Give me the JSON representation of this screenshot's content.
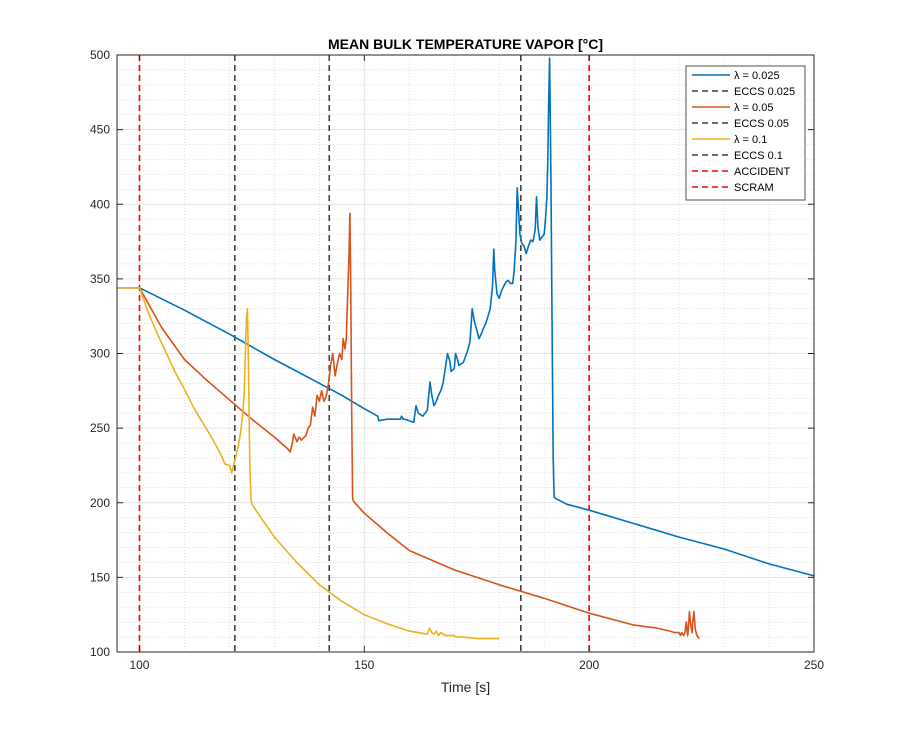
{
  "chart_data": {
    "type": "line",
    "title": "MEAN BULK TEMPERATURE VAPOR [°C]",
    "xlabel": "Time [s]",
    "ylabel": "",
    "xlim": [
      95,
      250
    ],
    "ylim": [
      100,
      500
    ],
    "xticks": [
      100,
      150,
      200,
      250
    ],
    "yticks": [
      100,
      150,
      200,
      250,
      300,
      350,
      400,
      450,
      500
    ],
    "grid": true,
    "minor_grid": true,
    "legend_position": "top-right",
    "series": [
      {
        "name": "λ = 0.025",
        "color": "#0072BD",
        "points": [
          [
            95,
            344
          ],
          [
            100,
            344
          ],
          [
            110,
            329
          ],
          [
            120,
            313
          ],
          [
            130,
            296
          ],
          [
            140,
            280
          ],
          [
            145,
            272
          ],
          [
            150,
            263
          ],
          [
            153,
            258
          ],
          [
            153.2,
            255
          ],
          [
            155,
            256
          ],
          [
            158,
            256
          ],
          [
            158.3,
            258
          ],
          [
            158.6,
            256
          ],
          [
            159,
            256
          ],
          [
            160,
            255
          ],
          [
            161,
            254
          ],
          [
            161.5,
            265
          ],
          [
            162,
            260
          ],
          [
            163,
            258
          ],
          [
            164,
            262
          ],
          [
            164.6,
            281
          ],
          [
            165,
            272
          ],
          [
            165.5,
            265
          ],
          [
            166,
            268
          ],
          [
            166.5,
            272
          ],
          [
            167,
            275
          ],
          [
            167.5,
            280
          ],
          [
            168,
            290
          ],
          [
            168.5,
            300
          ],
          [
            169,
            295
          ],
          [
            169.3,
            288
          ],
          [
            170,
            290
          ],
          [
            170.3,
            300
          ],
          [
            170.8,
            295
          ],
          [
            171,
            292
          ],
          [
            172,
            294
          ],
          [
            173,
            302
          ],
          [
            173.5,
            308
          ],
          [
            174,
            330
          ],
          [
            174.5,
            321
          ],
          [
            175,
            316
          ],
          [
            175.5,
            310
          ],
          [
            176,
            313
          ],
          [
            176.5,
            317
          ],
          [
            177,
            320
          ],
          [
            177.5,
            325
          ],
          [
            178,
            330
          ],
          [
            178.5,
            345
          ],
          [
            178.8,
            370
          ],
          [
            179,
            356
          ],
          [
            179.5,
            340
          ],
          [
            180,
            337
          ],
          [
            180.5,
            342
          ],
          [
            181,
            345
          ],
          [
            181.5,
            348
          ],
          [
            182,
            349
          ],
          [
            182.5,
            347
          ],
          [
            183,
            347
          ],
          [
            183.3,
            355
          ],
          [
            183.7,
            375
          ],
          [
            184,
            411
          ],
          [
            184.3,
            395
          ],
          [
            184.6,
            380
          ],
          [
            185,
            374
          ],
          [
            185.5,
            372
          ],
          [
            186,
            367
          ],
          [
            186.5,
            372
          ],
          [
            187,
            376
          ],
          [
            187.5,
            375
          ],
          [
            188,
            383
          ],
          [
            188.3,
            405
          ],
          [
            188.6,
            385
          ],
          [
            189,
            376
          ],
          [
            189.5,
            378
          ],
          [
            190,
            380
          ],
          [
            190.3,
            390
          ],
          [
            190.6,
            405
          ],
          [
            190.8,
            430
          ],
          [
            191,
            470
          ],
          [
            191.2,
            498
          ],
          [
            191.5,
            420
          ],
          [
            191.8,
            300
          ],
          [
            192,
            230
          ],
          [
            192.2,
            204
          ],
          [
            192.5,
            203
          ],
          [
            195,
            199
          ],
          [
            200,
            195
          ],
          [
            210,
            186
          ],
          [
            220,
            177
          ],
          [
            230,
            169
          ],
          [
            240,
            159
          ],
          [
            250,
            151
          ]
        ]
      },
      {
        "name": "λ = 0.05",
        "color": "#D95319",
        "points": [
          [
            95,
            344
          ],
          [
            100,
            344
          ],
          [
            105,
            317
          ],
          [
            110,
            296
          ],
          [
            115,
            282
          ],
          [
            120,
            269
          ],
          [
            125,
            256
          ],
          [
            130,
            244
          ],
          [
            133,
            236
          ],
          [
            133.5,
            234
          ],
          [
            134,
            240
          ],
          [
            134.3,
            246
          ],
          [
            135,
            241
          ],
          [
            135.5,
            244
          ],
          [
            136,
            242
          ],
          [
            137,
            245
          ],
          [
            137.5,
            250
          ],
          [
            138,
            252
          ],
          [
            138.5,
            264
          ],
          [
            139,
            258
          ],
          [
            139.5,
            272
          ],
          [
            140,
            268
          ],
          [
            140.5,
            275
          ],
          [
            141,
            268
          ],
          [
            141.5,
            271
          ],
          [
            142,
            279
          ],
          [
            142.5,
            292
          ],
          [
            143,
            300
          ],
          [
            143.5,
            285
          ],
          [
            144,
            293
          ],
          [
            144.5,
            300
          ],
          [
            145,
            296
          ],
          [
            145.3,
            310
          ],
          [
            145.7,
            303
          ],
          [
            146,
            310
          ],
          [
            146.3,
            340
          ],
          [
            146.6,
            365
          ],
          [
            146.8,
            394
          ],
          [
            147,
            340
          ],
          [
            147.2,
            260
          ],
          [
            147.4,
            203
          ],
          [
            147.6,
            201
          ],
          [
            150,
            193
          ],
          [
            155,
            180
          ],
          [
            160,
            168
          ],
          [
            170,
            155
          ],
          [
            180,
            145
          ],
          [
            190,
            136
          ],
          [
            200,
            126
          ],
          [
            210,
            118
          ],
          [
            215,
            116
          ],
          [
            218,
            114
          ],
          [
            219,
            113
          ],
          [
            220,
            113
          ],
          [
            220.3,
            111
          ],
          [
            220.6,
            113
          ],
          [
            221,
            111
          ],
          [
            221.3,
            113
          ],
          [
            221.6,
            120
          ],
          [
            221.9,
            111
          ],
          [
            222,
            113
          ],
          [
            222.3,
            127
          ],
          [
            222.6,
            118
          ],
          [
            222.9,
            113
          ],
          [
            223,
            119
          ],
          [
            223.3,
            127
          ],
          [
            223.6,
            115
          ],
          [
            224,
            111
          ],
          [
            224.5,
            109
          ]
        ]
      },
      {
        "name": "λ = 0.1",
        "color": "#EDB120",
        "points": [
          [
            95,
            344
          ],
          [
            100,
            344
          ],
          [
            102,
            327
          ],
          [
            104,
            313
          ],
          [
            106,
            300
          ],
          [
            108,
            287
          ],
          [
            110,
            276
          ],
          [
            112,
            264
          ],
          [
            114,
            254
          ],
          [
            116,
            244
          ],
          [
            118,
            233
          ],
          [
            119,
            226
          ],
          [
            120,
            225
          ],
          [
            120.5,
            220
          ],
          [
            121,
            226
          ],
          [
            121.5,
            232
          ],
          [
            122,
            238
          ],
          [
            122.5,
            248
          ],
          [
            123,
            260
          ],
          [
            123.3,
            275
          ],
          [
            123.6,
            305
          ],
          [
            123.8,
            324
          ],
          [
            124,
            330
          ],
          [
            124.2,
            300
          ],
          [
            124.5,
            230
          ],
          [
            124.8,
            202
          ],
          [
            125,
            199
          ],
          [
            127,
            190
          ],
          [
            130,
            177
          ],
          [
            135,
            160
          ],
          [
            140,
            145
          ],
          [
            145,
            134
          ],
          [
            150,
            125
          ],
          [
            155,
            119
          ],
          [
            160,
            114
          ],
          [
            164,
            112
          ],
          [
            164.5,
            116
          ],
          [
            165,
            113
          ],
          [
            165.5,
            112
          ],
          [
            166,
            114
          ],
          [
            166.5,
            111
          ],
          [
            167,
            113
          ],
          [
            168,
            111
          ],
          [
            170,
            111
          ],
          [
            170.5,
            110
          ],
          [
            172,
            110
          ],
          [
            175,
            109
          ],
          [
            180,
            109
          ]
        ]
      }
    ],
    "vertical_lines": [
      {
        "name": "ECCS 0.025",
        "x": 184.8,
        "color": "#404040",
        "style": "dashed"
      },
      {
        "name": "ECCS 0.05",
        "x": 142.2,
        "color": "#404040",
        "style": "dashed"
      },
      {
        "name": "ECCS 0.1",
        "x": 121.2,
        "color": "#404040",
        "style": "dashed"
      },
      {
        "name": "ACCIDENT",
        "x": 100,
        "color": "#FF0000",
        "style": "dashed"
      },
      {
        "name": "SCRAM",
        "x": 200,
        "color": "#FF0000",
        "style": "dashed"
      }
    ],
    "legend": [
      {
        "label": "λ = 0.025",
        "color": "#0072BD",
        "style": "solid"
      },
      {
        "label": "ECCS 0.025",
        "color": "#404040",
        "style": "dashed"
      },
      {
        "label": "λ = 0.05",
        "color": "#D95319",
        "style": "solid"
      },
      {
        "label": "ECCS 0.05",
        "color": "#404040",
        "style": "dashed"
      },
      {
        "label": "λ = 0.1",
        "color": "#EDB120",
        "style": "solid"
      },
      {
        "label": "ECCS 0.1",
        "color": "#404040",
        "style": "dashed"
      },
      {
        "label": "ACCIDENT",
        "color": "#FF0000",
        "style": "dashed"
      },
      {
        "label": "SCRAM",
        "color": "#FF0000",
        "style": "dashed"
      }
    ]
  }
}
